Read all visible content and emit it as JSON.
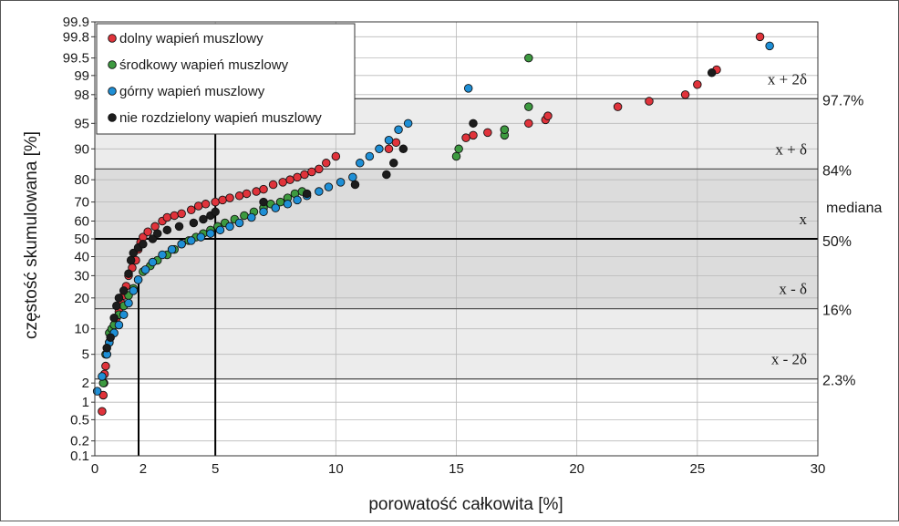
{
  "chart_data": {
    "type": "scatter",
    "title": "",
    "xlabel": "porowatość całkowita [%]",
    "ylabel": "częstość skumulowana [%]",
    "xlim": [
      0,
      30
    ],
    "ylim": [
      0.1,
      99.9
    ],
    "y_scale": "probability",
    "grid": true,
    "legend_position": "top-left",
    "x_ticks": [
      {
        "v": 0,
        "label": "0"
      },
      {
        "v": 2,
        "label": "2"
      },
      {
        "v": 5,
        "label": "5"
      },
      {
        "v": 10,
        "label": "10"
      },
      {
        "v": 15,
        "label": "15"
      },
      {
        "v": 20,
        "label": "20"
      },
      {
        "v": 25,
        "label": "25"
      },
      {
        "v": 30,
        "label": "30"
      }
    ],
    "y_ticks": [
      "0.1",
      "0.2",
      "0.5",
      "1",
      "2",
      "5",
      "10",
      "20",
      "30",
      "40",
      "50",
      "60",
      "70",
      "80",
      "90",
      "95",
      "98",
      "99",
      "99.5",
      "99.8",
      "99.9"
    ],
    "bands": [
      {
        "from": 2.3,
        "to": 97.7,
        "fill": "#ececec"
      },
      {
        "from": 16,
        "to": 84,
        "fill": "#dcdcdc"
      }
    ],
    "reference_lines": [
      {
        "y": 97.7,
        "label": "97.7%",
        "stat": "x + 2δ"
      },
      {
        "y": 84,
        "label": "84%",
        "stat": "x + δ"
      },
      {
        "y": 50,
        "label": "50%",
        "stat": "x",
        "extra": "mediana"
      },
      {
        "y": 16,
        "label": "16%",
        "stat": "x - δ"
      },
      {
        "y": 2.3,
        "label": "2.3%",
        "stat": "x - 2δ"
      }
    ],
    "vertical_lines": [
      5
    ],
    "series": [
      {
        "name": "dolny wapień muszlowy",
        "color": "#e0333b",
        "points": [
          [
            0.3,
            0.7
          ],
          [
            0.35,
            1.3
          ],
          [
            0.38,
            2
          ],
          [
            0.4,
            2.7
          ],
          [
            0.45,
            3.5
          ],
          [
            0.5,
            5
          ],
          [
            0.6,
            7
          ],
          [
            0.7,
            9
          ],
          [
            0.8,
            11
          ],
          [
            0.9,
            13
          ],
          [
            1.0,
            15
          ],
          [
            1.1,
            18
          ],
          [
            1.2,
            21
          ],
          [
            1.3,
            25
          ],
          [
            1.4,
            30
          ],
          [
            1.55,
            34
          ],
          [
            1.7,
            38
          ],
          [
            1.8,
            44
          ],
          [
            1.9,
            48
          ],
          [
            2.0,
            51
          ],
          [
            2.2,
            54
          ],
          [
            2.5,
            57
          ],
          [
            2.8,
            60
          ],
          [
            3.0,
            62
          ],
          [
            3.3,
            63
          ],
          [
            3.6,
            64
          ],
          [
            4.0,
            66
          ],
          [
            4.3,
            68
          ],
          [
            4.6,
            69
          ],
          [
            5.0,
            70
          ],
          [
            5.3,
            71
          ],
          [
            5.6,
            72
          ],
          [
            6.0,
            73
          ],
          [
            6.3,
            74
          ],
          [
            6.7,
            75
          ],
          [
            7.0,
            76
          ],
          [
            7.4,
            78
          ],
          [
            7.8,
            79
          ],
          [
            8.1,
            80
          ],
          [
            8.4,
            81
          ],
          [
            8.7,
            82
          ],
          [
            9.0,
            83
          ],
          [
            9.3,
            84
          ],
          [
            9.6,
            86
          ],
          [
            10.0,
            88
          ],
          [
            12.2,
            90
          ],
          [
            12.5,
            91.5
          ],
          [
            15.4,
            92.5
          ],
          [
            15.7,
            93
          ],
          [
            16.3,
            93.5
          ],
          [
            17.0,
            94
          ],
          [
            18.0,
            95
          ],
          [
            18.7,
            95.5
          ],
          [
            18.8,
            96
          ],
          [
            21.7,
            97
          ],
          [
            23.0,
            97.5
          ],
          [
            24.5,
            98
          ],
          [
            25.0,
            98.6
          ],
          [
            25.8,
            99.2
          ],
          [
            27.6,
            99.8
          ]
        ]
      },
      {
        "name": "środkowy wapień muszlowy",
        "color": "#3d9a40",
        "points": [
          [
            0.35,
            2
          ],
          [
            0.45,
            5
          ],
          [
            0.6,
            9
          ],
          [
            0.7,
            10
          ],
          [
            0.8,
            11
          ],
          [
            1.0,
            14
          ],
          [
            1.2,
            17
          ],
          [
            1.4,
            21
          ],
          [
            1.6,
            24
          ],
          [
            1.8,
            28
          ],
          [
            2.0,
            32
          ],
          [
            2.3,
            35
          ],
          [
            2.6,
            38
          ],
          [
            3.0,
            41
          ],
          [
            3.3,
            44
          ],
          [
            3.6,
            47
          ],
          [
            3.9,
            49
          ],
          [
            4.2,
            51
          ],
          [
            4.5,
            53
          ],
          [
            4.8,
            55
          ],
          [
            5.1,
            57
          ],
          [
            5.4,
            59
          ],
          [
            5.8,
            61
          ],
          [
            6.2,
            63
          ],
          [
            6.6,
            65
          ],
          [
            7.0,
            67
          ],
          [
            7.3,
            69
          ],
          [
            7.7,
            70
          ],
          [
            8.0,
            72
          ],
          [
            8.3,
            74
          ],
          [
            8.6,
            75
          ],
          [
            15.0,
            88
          ],
          [
            15.1,
            90
          ],
          [
            17.0,
            93
          ],
          [
            17.0,
            94
          ],
          [
            18.0,
            97
          ],
          [
            18.0,
            99.5
          ]
        ]
      },
      {
        "name": "górny wapień muszlowy",
        "color": "#1e8fd6",
        "points": [
          [
            0.1,
            1.5
          ],
          [
            0.3,
            2.5
          ],
          [
            0.5,
            5
          ],
          [
            0.6,
            7
          ],
          [
            0.8,
            9
          ],
          [
            1.0,
            11
          ],
          [
            1.2,
            14
          ],
          [
            1.4,
            18
          ],
          [
            1.6,
            23
          ],
          [
            1.8,
            28
          ],
          [
            2.1,
            33
          ],
          [
            2.4,
            37
          ],
          [
            2.8,
            41
          ],
          [
            3.2,
            44
          ],
          [
            3.6,
            47
          ],
          [
            4.0,
            49
          ],
          [
            4.4,
            51
          ],
          [
            4.8,
            53
          ],
          [
            5.2,
            55
          ],
          [
            5.6,
            57
          ],
          [
            6.0,
            59
          ],
          [
            6.5,
            62
          ],
          [
            7.0,
            65
          ],
          [
            7.5,
            67
          ],
          [
            8.0,
            69
          ],
          [
            8.4,
            71
          ],
          [
            8.8,
            73
          ],
          [
            9.3,
            75
          ],
          [
            9.7,
            77
          ],
          [
            10.2,
            79
          ],
          [
            10.7,
            81
          ],
          [
            11.0,
            86
          ],
          [
            11.4,
            88
          ],
          [
            11.8,
            90
          ],
          [
            12.2,
            92
          ],
          [
            12.6,
            94
          ],
          [
            13.0,
            95
          ],
          [
            15.5,
            98.4
          ],
          [
            28.0,
            99.7
          ]
        ]
      },
      {
        "name": "nie rozdzielony wapień muszlowy",
        "color": "#1c1c1c",
        "points": [
          [
            0.5,
            6
          ],
          [
            0.65,
            8
          ],
          [
            0.8,
            13
          ],
          [
            0.9,
            17
          ],
          [
            1.0,
            20
          ],
          [
            1.2,
            23
          ],
          [
            1.4,
            31
          ],
          [
            1.5,
            38
          ],
          [
            1.6,
            42
          ],
          [
            1.8,
            45
          ],
          [
            2.0,
            47
          ],
          [
            2.4,
            50
          ],
          [
            2.6,
            53
          ],
          [
            3.0,
            55
          ],
          [
            3.5,
            57
          ],
          [
            4.1,
            59
          ],
          [
            4.5,
            61
          ],
          [
            4.8,
            63
          ],
          [
            5.0,
            65
          ],
          [
            7.0,
            70
          ],
          [
            8.8,
            74
          ],
          [
            10.8,
            78
          ],
          [
            12.1,
            82
          ],
          [
            12.4,
            86
          ],
          [
            12.8,
            90
          ],
          [
            15.7,
            95
          ],
          [
            25.6,
            99.1
          ]
        ]
      }
    ]
  }
}
